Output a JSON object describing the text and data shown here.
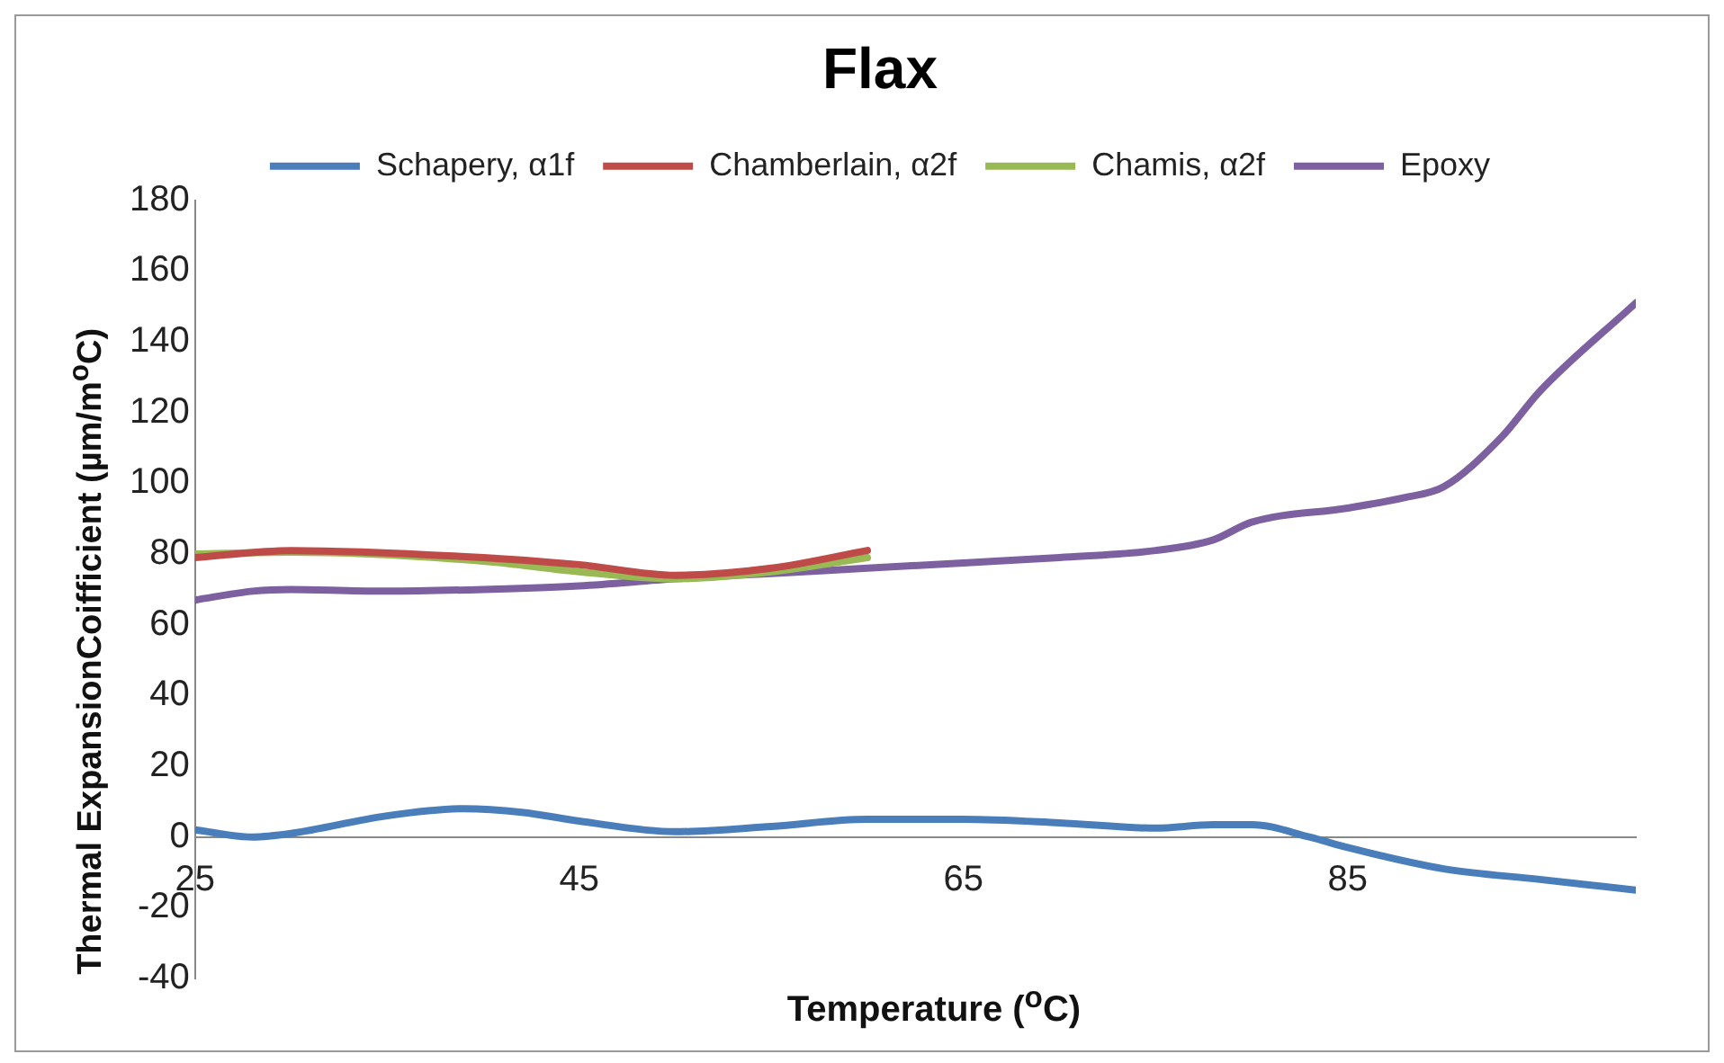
{
  "chart_data": {
    "type": "line",
    "title": "Flax",
    "xlabel": "Temperature ($^{o}$C)",
    "ylabel": "Thermal ExpansionCoifficient (µm/m$^{o}$C)",
    "xlim": [
      25,
      100
    ],
    "xticks": [
      25,
      45,
      65,
      85
    ],
    "ylim": [
      -40,
      180
    ],
    "yticks": [
      -40,
      -20,
      0,
      20,
      40,
      60,
      80,
      100,
      120,
      140,
      160,
      180
    ],
    "grid": false,
    "legend": "top",
    "series": [
      {
        "name": "Schapery, α1f",
        "color": "#4a7ebb",
        "x": [
          25,
          28,
          30,
          35,
          39,
          42,
          45,
          50,
          55,
          60,
          65,
          70,
          75,
          78,
          80,
          83,
          85,
          90,
          95,
          100
        ],
        "values": [
          2,
          0,
          1,
          6,
          8,
          7,
          4.5,
          1.5,
          3,
          5,
          5,
          4,
          2.5,
          3.5,
          3.5,
          0,
          -3,
          -9,
          -12,
          -15
        ]
      },
      {
        "name": "Chamberlain, α2f",
        "color": "#be4b48",
        "x": [
          25,
          30,
          40,
          45,
          50,
          55,
          60
        ],
        "values": [
          79,
          81,
          79,
          77,
          74,
          76,
          81
        ]
      },
      {
        "name": "Chamis, α2f",
        "color": "#98b954",
        "x": [
          25,
          30,
          40,
          45,
          50,
          55,
          60
        ],
        "values": [
          80,
          80.5,
          78,
          75,
          73,
          75,
          79
        ]
      },
      {
        "name": "Epoxy",
        "color": "#7d60a0",
        "x": [
          25,
          28,
          30,
          35,
          40,
          45,
          50,
          55,
          60,
          65,
          70,
          75,
          78,
          80,
          85,
          88,
          90,
          93,
          95,
          100
        ],
        "values": [
          67,
          69.5,
          70,
          69.5,
          70,
          71,
          73,
          74.5,
          76,
          77.5,
          79,
          81,
          84,
          89,
          93,
          96,
          99,
          113,
          126,
          151
        ]
      }
    ]
  }
}
